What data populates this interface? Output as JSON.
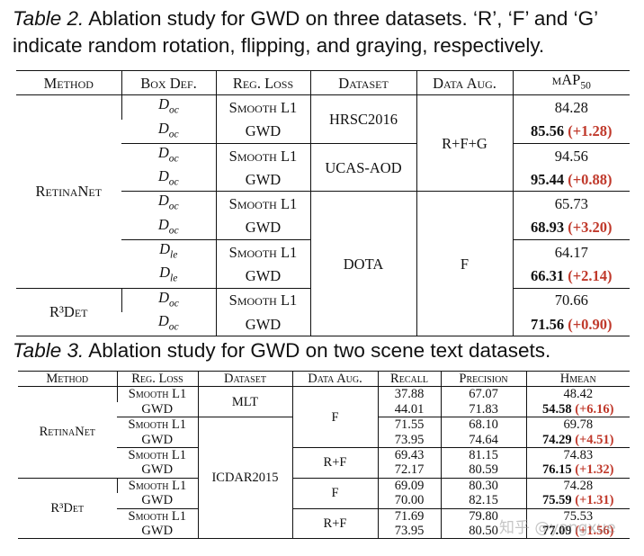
{
  "table2": {
    "caption_label": "Table 2.",
    "caption": "Ablation study for GWD on three datasets. ‘R’, ‘F’ and ‘G’ indicate random rotation, flipping, and graying, respectively.",
    "header": [
      "Method",
      "Box Def.",
      "Reg. Loss",
      "Dataset",
      "Data Aug.",
      "mAP"
    ],
    "header_sub": "50",
    "methods": [
      "RetinaNet",
      "R³Det"
    ],
    "datasets": [
      "HRSC2016",
      "UCAS-AOD",
      "DOTA"
    ],
    "augs": [
      "R+F+G",
      "F"
    ],
    "rows": [
      {
        "box": {
          "base": "D",
          "sub": "oc"
        },
        "loss": "Smooth L1",
        "map": "84.28"
      },
      {
        "box": {
          "base": "D",
          "sub": "oc"
        },
        "loss": "GWD",
        "map": "85.56",
        "gain": "(+1.28)"
      },
      {
        "box": {
          "base": "D",
          "sub": "oc"
        },
        "loss": "Smooth L1",
        "map": "94.56"
      },
      {
        "box": {
          "base": "D",
          "sub": "oc"
        },
        "loss": "GWD",
        "map": "95.44",
        "gain": "(+0.88)"
      },
      {
        "box": {
          "base": "D",
          "sub": "oc"
        },
        "loss": "Smooth L1",
        "map": "65.73"
      },
      {
        "box": {
          "base": "D",
          "sub": "oc"
        },
        "loss": "GWD",
        "map": "68.93",
        "gain": "(+3.20)"
      },
      {
        "box": {
          "base": "D",
          "sub": "le"
        },
        "loss": "Smooth L1",
        "map": "64.17"
      },
      {
        "box": {
          "base": "D",
          "sub": "le"
        },
        "loss": "GWD",
        "map": "66.31",
        "gain": "(+2.14)"
      },
      {
        "box": {
          "base": "D",
          "sub": "oc"
        },
        "loss": "Smooth L1",
        "map": "70.66"
      },
      {
        "box": {
          "base": "D",
          "sub": "oc"
        },
        "loss": "GWD",
        "map": "71.56",
        "gain": "(+0.90)"
      }
    ]
  },
  "table3": {
    "caption_label": "Table 3.",
    "caption": "Ablation study for GWD on two scene text datasets.",
    "header": [
      "Method",
      "Reg. Loss",
      "Dataset",
      "Data Aug.",
      "Recall",
      "Precision",
      "Hmean"
    ],
    "methods": [
      "RetinaNet",
      "R³Det"
    ],
    "datasets": [
      "MLT",
      "ICDAR2015"
    ],
    "augs": [
      "F",
      "R+F",
      "F",
      "R+F"
    ],
    "rows": [
      {
        "loss": "Smooth L1",
        "recall": "37.88",
        "precision": "67.07",
        "hmean": "48.42"
      },
      {
        "loss": "GWD",
        "recall": "44.01",
        "precision": "71.83",
        "hmean": "54.58",
        "gain": "(+6.16)"
      },
      {
        "loss": "Smooth L1",
        "recall": "71.55",
        "precision": "68.10",
        "hmean": "69.78"
      },
      {
        "loss": "GWD",
        "recall": "73.95",
        "precision": "74.64",
        "hmean": "74.29",
        "gain": "(+4.51)"
      },
      {
        "loss": "Smooth L1",
        "recall": "69.43",
        "precision": "81.15",
        "hmean": "74.83"
      },
      {
        "loss": "GWD",
        "recall": "72.17",
        "precision": "80.59",
        "hmean": "76.15",
        "gain": "(+1.32)"
      },
      {
        "loss": "Smooth L1",
        "recall": "69.09",
        "precision": "80.30",
        "hmean": "74.28"
      },
      {
        "loss": "GWD",
        "recall": "70.00",
        "precision": "82.15",
        "hmean": "75.59",
        "gain": "(+1.31)"
      },
      {
        "loss": "Smooth L1",
        "recall": "71.69",
        "precision": "79.80",
        "hmean": "75.53"
      },
      {
        "loss": "GWD",
        "recall": "73.95",
        "precision": "80.50",
        "hmean": "77.09",
        "gain": "(+1.56)"
      }
    ]
  },
  "watermark": "知乎 @yangxue"
}
